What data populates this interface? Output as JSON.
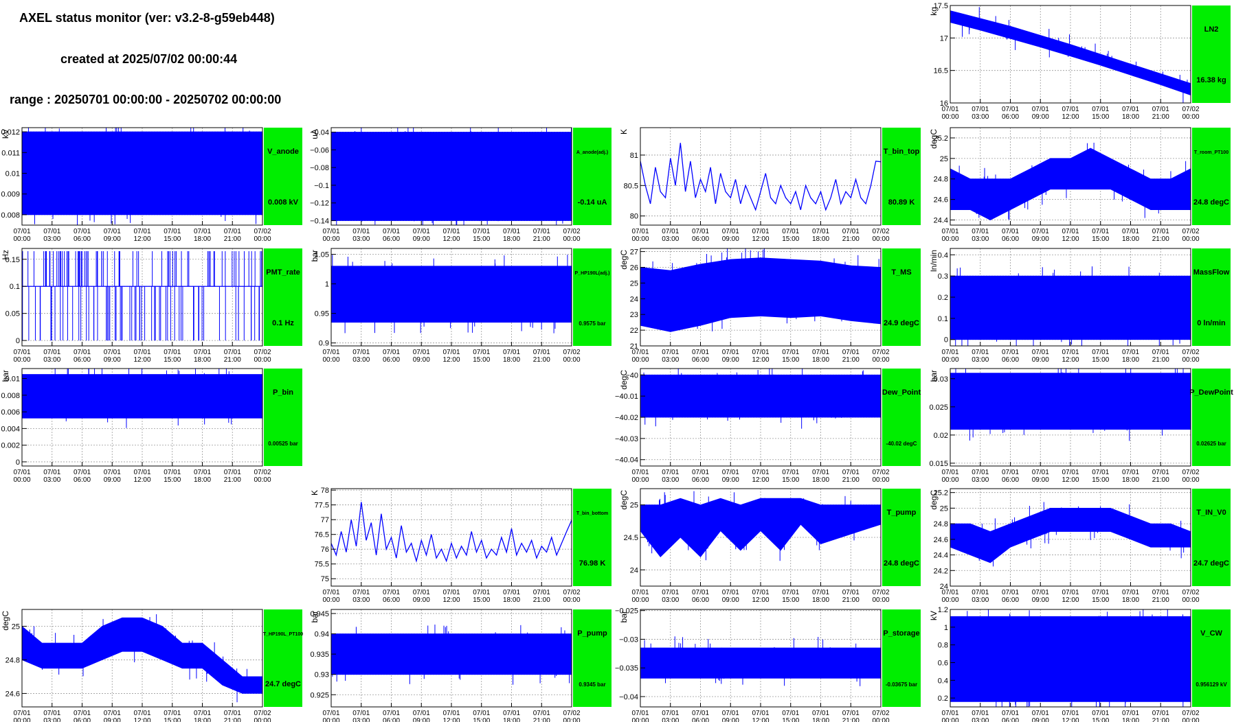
{
  "header": {
    "title": "AXEL status monitor (ver: v3.2-8-g59eb448)",
    "created": "created at 2025/07/02 00:00:44",
    "range": "range : 20250701 00:00:00 - 20250702 00:00:00"
  },
  "colors": {
    "series": "#0000ff",
    "status_box": "#00ee00",
    "grid": "#999999"
  },
  "chart_data": [
    {
      "id": "LN2",
      "type": "line",
      "label": "LN2",
      "value_text": "16.38 kg",
      "ylabel": "kg",
      "ylim": [
        16.0,
        17.5
      ],
      "yticks": [
        16,
        16.5,
        17,
        17.5
      ],
      "ytick_labels": [
        "16",
        "16.5",
        "17",
        "17.5"
      ],
      "style": "band",
      "x": [
        0,
        3,
        6,
        9,
        12,
        15,
        18,
        21,
        24
      ],
      "y_upper": [
        17.42,
        17.3,
        17.18,
        17.04,
        16.9,
        16.75,
        16.6,
        16.45,
        16.3
      ],
      "y_lower": [
        17.24,
        17.12,
        16.99,
        16.86,
        16.72,
        16.58,
        16.43,
        16.28,
        16.12
      ]
    },
    {
      "id": "V_anode",
      "type": "line",
      "label": "V_anode",
      "value_text": "0.008 kV",
      "ylabel": "kV",
      "ylim": [
        0.0075,
        0.0122
      ],
      "yticks": [
        0.008,
        0.009,
        0.01,
        0.011,
        0.012
      ],
      "ytick_labels": [
        "0.008",
        "0.009",
        "0.01",
        "0.011",
        "0.012"
      ],
      "style": "band",
      "x": [
        0,
        24
      ],
      "y_upper": [
        0.012,
        0.012
      ],
      "y_lower": [
        0.008,
        0.008
      ]
    },
    {
      "id": "A_anode",
      "type": "line",
      "label": "A_anode(adj.)",
      "value_text": "-0.14 uA",
      "ylabel": "uA",
      "ylim": [
        -0.145,
        -0.035
      ],
      "yticks": [
        -0.14,
        -0.12,
        -0.1,
        -0.08,
        -0.06,
        -0.04
      ],
      "ytick_labels": [
        "−0.14",
        "−0.12",
        "−0.1",
        "−0.08",
        "−0.06",
        "−0.04"
      ],
      "style": "band",
      "x": [
        0,
        24
      ],
      "y_upper": [
        -0.04,
        -0.04
      ],
      "y_lower": [
        -0.14,
        -0.14
      ]
    },
    {
      "id": "T_bin_top",
      "type": "line",
      "label": "T_bin_top",
      "value_text": "80.89 K",
      "ylabel": "K",
      "ylim": [
        79.85,
        81.45
      ],
      "yticks": [
        80,
        80.5,
        81
      ],
      "ytick_labels": [
        "80",
        "80.5",
        "81"
      ],
      "style": "line",
      "x": [
        0,
        0.5,
        1,
        1.5,
        2,
        2.5,
        3,
        3.5,
        4,
        4.5,
        5,
        5.5,
        6,
        6.5,
        7,
        7.5,
        8,
        8.5,
        9,
        9.5,
        10,
        10.5,
        11,
        11.5,
        12,
        12.5,
        13,
        13.5,
        14,
        14.5,
        15,
        15.5,
        16,
        16.5,
        17,
        17.5,
        18,
        18.5,
        19,
        19.5,
        20,
        20.5,
        21,
        21.5,
        22,
        22.5,
        23,
        23.5,
        24
      ],
      "y": [
        80.9,
        80.5,
        80.2,
        80.8,
        80.4,
        80.3,
        80.95,
        80.5,
        81.2,
        80.4,
        80.9,
        80.3,
        80.6,
        80.4,
        80.8,
        80.2,
        80.7,
        80.4,
        80.3,
        80.6,
        80.2,
        80.5,
        80.3,
        80.1,
        80.4,
        80.7,
        80.3,
        80.2,
        80.5,
        80.3,
        80.2,
        80.4,
        80.1,
        80.5,
        80.3,
        80.2,
        80.4,
        80.1,
        80.3,
        80.6,
        80.2,
        80.4,
        80.3,
        80.6,
        80.3,
        80.2,
        80.5,
        80.9,
        80.89
      ]
    },
    {
      "id": "T_room_PT100",
      "type": "line",
      "label": "T_room_PT100",
      "value_text": "24.8 degC",
      "ylabel": "degC",
      "ylim": [
        24.35,
        25.3
      ],
      "yticks": [
        24.4,
        24.6,
        24.8,
        25,
        25.2
      ],
      "ytick_labels": [
        "24.4",
        "24.6",
        "24.8",
        "25",
        "25.2"
      ],
      "style": "band",
      "x": [
        0,
        2,
        4,
        6,
        8,
        10,
        12,
        14,
        16,
        18,
        20,
        22,
        24
      ],
      "y_upper": [
        24.9,
        24.8,
        24.8,
        24.8,
        24.9,
        25.0,
        25.0,
        25.1,
        25.0,
        24.9,
        24.8,
        24.8,
        24.9
      ],
      "y_lower": [
        24.5,
        24.5,
        24.4,
        24.5,
        24.6,
        24.7,
        24.7,
        24.7,
        24.7,
        24.6,
        24.5,
        24.5,
        24.5
      ]
    },
    {
      "id": "PMT_rate",
      "type": "line",
      "label": "PMT_rate",
      "value_text": "0.1 Hz",
      "ylabel": "Hz",
      "ylim": [
        -0.01,
        0.17
      ],
      "yticks": [
        0,
        0.05,
        0.1,
        0.15
      ],
      "ytick_labels": [
        "0",
        "0.05",
        "0.1",
        "0.15"
      ],
      "style": "spikes",
      "base": 0.1,
      "upper": 0.165,
      "lower": 0.0
    },
    {
      "id": "P_HP190L",
      "type": "line",
      "label": "P_HP190L(adj.)",
      "value_text": "0.9575 bar",
      "ylabel": "bar",
      "ylim": [
        0.895,
        1.06
      ],
      "yticks": [
        0.9,
        0.95,
        1,
        1.05
      ],
      "ytick_labels": [
        "0.9",
        "0.95",
        "1",
        "1.05"
      ],
      "style": "band",
      "x": [
        0,
        24
      ],
      "y_upper": [
        1.03,
        1.03
      ],
      "y_lower": [
        0.935,
        0.935
      ]
    },
    {
      "id": "T_MS",
      "type": "line",
      "label": "T_MS",
      "value_text": "24.9 degC",
      "ylabel": "degC",
      "ylim": [
        21.0,
        27.2
      ],
      "yticks": [
        21,
        22,
        23,
        24,
        25,
        26,
        27
      ],
      "ytick_labels": [
        "21",
        "22",
        "23",
        "24",
        "25",
        "26",
        "27"
      ],
      "style": "band",
      "x": [
        0,
        3,
        6,
        9,
        12,
        15,
        18,
        21,
        24
      ],
      "y_upper": [
        26.0,
        25.8,
        26.2,
        26.5,
        26.6,
        26.5,
        26.4,
        26.1,
        26.0
      ],
      "y_lower": [
        22.3,
        21.9,
        22.3,
        22.8,
        22.9,
        22.8,
        22.9,
        22.6,
        22.4
      ]
    },
    {
      "id": "MassFlow",
      "type": "line",
      "label": "MassFlow",
      "value_text": "0 ln/min",
      "ylabel": "ln/min",
      "ylim": [
        -0.03,
        0.43
      ],
      "yticks": [
        0,
        0.1,
        0.2,
        0.3,
        0.4
      ],
      "ytick_labels": [
        "0",
        "0.1",
        "0.2",
        "0.3",
        "0.4"
      ],
      "style": "band",
      "x": [
        0,
        24
      ],
      "y_upper": [
        0.3,
        0.3
      ],
      "y_lower": [
        0,
        0
      ]
    },
    {
      "id": "P_bin",
      "type": "line",
      "label": "P_bin",
      "value_text": "0.00525 bar",
      "ylabel": "bar",
      "ylim": [
        -0.0005,
        0.0112
      ],
      "yticks": [
        0,
        0.002,
        0.004,
        0.006,
        0.008,
        0.01
      ],
      "ytick_labels": [
        "0",
        "0.002",
        "0.004",
        "0.006",
        "0.008",
        "0.01"
      ],
      "style": "band",
      "x": [
        0,
        24
      ],
      "y_upper": [
        0.0105,
        0.0105
      ],
      "y_lower": [
        0.00525,
        0.00525
      ]
    },
    {
      "id": "Dew_Point",
      "type": "line",
      "label": "Dew_Point",
      "value_text": "-40.02 degC",
      "ylabel": "degC",
      "ylim": [
        -40.043,
        -39.997
      ],
      "yticks": [
        -40.04,
        -40.03,
        -40.02,
        -40.01,
        -40.0
      ],
      "ytick_labels": [
        "−40.04",
        "−40.03",
        "−40.02",
        "−40.01",
        "−40"
      ],
      "style": "band",
      "x": [
        0,
        24
      ],
      "y_upper": [
        -40.0,
        -40.0
      ],
      "y_lower": [
        -40.02,
        -40.02
      ]
    },
    {
      "id": "P_DewPoint",
      "type": "line",
      "label": "P_DewPoint",
      "value_text": "0.02625 bar",
      "ylabel": "bar",
      "ylim": [
        0.0145,
        0.0318
      ],
      "yticks": [
        0.015,
        0.02,
        0.025,
        0.03
      ],
      "ytick_labels": [
        "0.015",
        "0.02",
        "0.025",
        "0.03"
      ],
      "style": "band",
      "x": [
        0,
        24
      ],
      "y_upper": [
        0.031,
        0.031
      ],
      "y_lower": [
        0.021,
        0.021
      ]
    },
    {
      "id": "T_bin_bottom",
      "type": "line",
      "label": "T_bin_bottom",
      "value_text": "76.98 K",
      "ylabel": "K",
      "ylim": [
        74.75,
        78.05
      ],
      "yticks": [
        75,
        75.5,
        76,
        76.5,
        77,
        77.5,
        78
      ],
      "ytick_labels": [
        "75",
        "75.5",
        "76",
        "76.5",
        "77",
        "77.5",
        "78"
      ],
      "style": "line",
      "x": [
        0,
        0.5,
        1,
        1.5,
        2,
        2.5,
        3,
        3.5,
        4,
        4.5,
        5,
        5.5,
        6,
        6.5,
        7,
        7.5,
        8,
        8.5,
        9,
        9.5,
        10,
        10.5,
        11,
        11.5,
        12,
        12.5,
        13,
        13.5,
        14,
        14.5,
        15,
        15.5,
        16,
        16.5,
        17,
        17.5,
        18,
        18.5,
        19,
        19.5,
        20,
        20.5,
        21,
        21.5,
        22,
        22.5,
        23,
        23.5,
        24
      ],
      "y": [
        76.2,
        75.8,
        76.6,
        75.9,
        77.0,
        76.1,
        77.6,
        76.3,
        76.9,
        75.8,
        77.2,
        76.0,
        76.4,
        75.7,
        76.8,
        75.9,
        76.2,
        75.6,
        76.3,
        75.8,
        76.5,
        75.7,
        76.0,
        75.6,
        76.2,
        75.7,
        76.1,
        75.8,
        76.6,
        75.9,
        76.3,
        75.7,
        76.0,
        75.8,
        76.4,
        75.9,
        76.7,
        75.8,
        76.2,
        75.9,
        76.3,
        75.7,
        76.1,
        75.9,
        76.4,
        75.8,
        76.2,
        76.6,
        76.98
      ]
    },
    {
      "id": "T_pump",
      "type": "line",
      "label": "T_pump",
      "value_text": "24.8 degC",
      "ylabel": "degC",
      "ylim": [
        23.75,
        25.25
      ],
      "yticks": [
        24,
        24.5,
        25
      ],
      "ytick_labels": [
        "24",
        "24.5",
        "25"
      ],
      "style": "band",
      "x": [
        0,
        2,
        4,
        6,
        8,
        10,
        12,
        14,
        16,
        18,
        20,
        22,
        24
      ],
      "y_upper": [
        25.0,
        25.0,
        25.1,
        25.0,
        25.1,
        25.0,
        25.1,
        25.1,
        25.1,
        25.0,
        25.0,
        25.0,
        25.0
      ],
      "y_lower": [
        24.6,
        24.2,
        24.5,
        24.2,
        24.6,
        24.3,
        24.6,
        24.3,
        24.7,
        24.4,
        24.5,
        24.6,
        24.7
      ]
    },
    {
      "id": "T_IN_V0",
      "type": "line",
      "label": "T_IN_V0",
      "value_text": "24.7 degC",
      "ylabel": "degC",
      "ylim": [
        24.0,
        25.25
      ],
      "yticks": [
        24,
        24.2,
        24.4,
        24.6,
        24.8,
        25,
        25.2
      ],
      "ytick_labels": [
        "24",
        "24.2",
        "24.4",
        "24.6",
        "24.8",
        "25",
        "25.2"
      ],
      "style": "band",
      "x": [
        0,
        2,
        4,
        6,
        8,
        10,
        12,
        14,
        16,
        18,
        20,
        22,
        24
      ],
      "y_upper": [
        24.8,
        24.8,
        24.7,
        24.8,
        24.9,
        25.0,
        25.0,
        25.0,
        25.0,
        24.9,
        24.8,
        24.8,
        24.7
      ],
      "y_lower": [
        24.5,
        24.4,
        24.3,
        24.5,
        24.6,
        24.7,
        24.7,
        24.7,
        24.7,
        24.6,
        24.5,
        24.5,
        24.5
      ]
    },
    {
      "id": "T_HP190L_PT100",
      "type": "line",
      "label": "T_HP190L_PT100",
      "value_text": "24.7 degC",
      "ylabel": "degC",
      "ylim": [
        24.52,
        25.1
      ],
      "yticks": [
        24.6,
        24.8,
        25
      ],
      "ytick_labels": [
        "24.6",
        "24.8",
        "25"
      ],
      "style": "band",
      "x": [
        0,
        2,
        4,
        6,
        8,
        10,
        12,
        14,
        16,
        18,
        20,
        22,
        24
      ],
      "y_upper": [
        25.0,
        24.9,
        24.9,
        24.9,
        25.0,
        25.05,
        25.05,
        25.0,
        24.9,
        24.9,
        24.8,
        24.7,
        24.7
      ],
      "y_lower": [
        24.8,
        24.75,
        24.75,
        24.75,
        24.8,
        24.85,
        24.85,
        24.8,
        24.75,
        24.75,
        24.65,
        24.6,
        24.6
      ]
    },
    {
      "id": "P_pump",
      "type": "line",
      "label": "P_pump",
      "value_text": "0.9345 bar",
      "ylabel": "bar",
      "ylim": [
        0.922,
        0.946
      ],
      "yticks": [
        0.925,
        0.93,
        0.935,
        0.94,
        0.945
      ],
      "ytick_labels": [
        "0.925",
        "0.93",
        "0.935",
        "0.94",
        "0.945"
      ],
      "style": "band",
      "x": [
        0,
        24
      ],
      "y_upper": [
        0.94,
        0.94
      ],
      "y_lower": [
        0.93,
        0.93
      ]
    },
    {
      "id": "P_storage",
      "type": "line",
      "label": "P_storage",
      "value_text": "-0.03675 bar",
      "ylabel": "bar",
      "ylim": [
        -0.0418,
        -0.0248
      ],
      "yticks": [
        -0.04,
        -0.035,
        -0.03,
        -0.025
      ],
      "ytick_labels": [
        "−0.04",
        "−0.035",
        "−0.03",
        "−0.025"
      ],
      "style": "band",
      "x": [
        0,
        24
      ],
      "y_upper": [
        -0.0315,
        -0.0315
      ],
      "y_lower": [
        -0.0368,
        -0.0368
      ]
    },
    {
      "id": "V_CW",
      "type": "line",
      "label": "V_CW",
      "value_text": "0.956129 kV",
      "ylabel": "kV",
      "ylim": [
        0.1,
        1.2
      ],
      "yticks": [
        0.2,
        0.4,
        0.6,
        0.8,
        1,
        1.2
      ],
      "ytick_labels": [
        "0.2",
        "0.4",
        "0.6",
        "0.8",
        "1",
        "1.2"
      ],
      "style": "band",
      "x": [
        0,
        24
      ],
      "y_upper": [
        1.12,
        1.12
      ],
      "y_lower": [
        0.16,
        0.16
      ]
    }
  ],
  "x_axis": {
    "xlim": [
      0,
      24
    ],
    "ticks": [
      0,
      3,
      6,
      9,
      12,
      15,
      18,
      21,
      24
    ],
    "date_labels": [
      "07/01",
      "07/01",
      "07/01",
      "07/01",
      "07/01",
      "07/01",
      "07/01",
      "07/01",
      "07/02"
    ],
    "time_labels": [
      "00:00",
      "03:00",
      "06:00",
      "09:00",
      "12:00",
      "15:00",
      "18:00",
      "21:00",
      "00:00"
    ]
  }
}
